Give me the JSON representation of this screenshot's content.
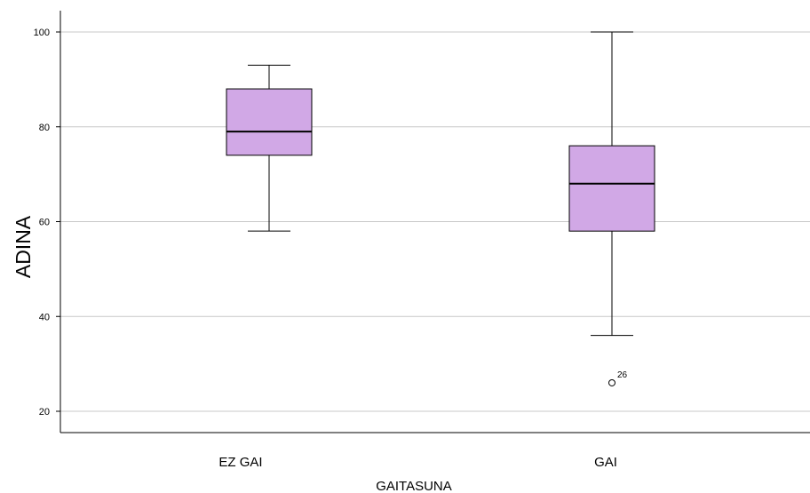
{
  "chart_data": {
    "type": "boxplot",
    "xlabel": "GAITASUNA",
    "ylabel": "ADINA",
    "ylim": [
      16,
      104
    ],
    "yticks": [
      20,
      40,
      60,
      80,
      100
    ],
    "grid": true,
    "categories": [
      "EZ GAI",
      "GAI"
    ],
    "box_color": "#d1a8e6",
    "boxes": [
      {
        "category": "EZ GAI",
        "whisker_low": 58,
        "q1": 74,
        "median": 79,
        "q3": 88,
        "whisker_high": 93,
        "outliers": []
      },
      {
        "category": "GAI",
        "whisker_low": 36,
        "q1": 58,
        "median": 68,
        "q3": 76,
        "whisker_high": 100,
        "outliers": [
          {
            "value": 26,
            "label": "26"
          }
        ]
      }
    ]
  }
}
